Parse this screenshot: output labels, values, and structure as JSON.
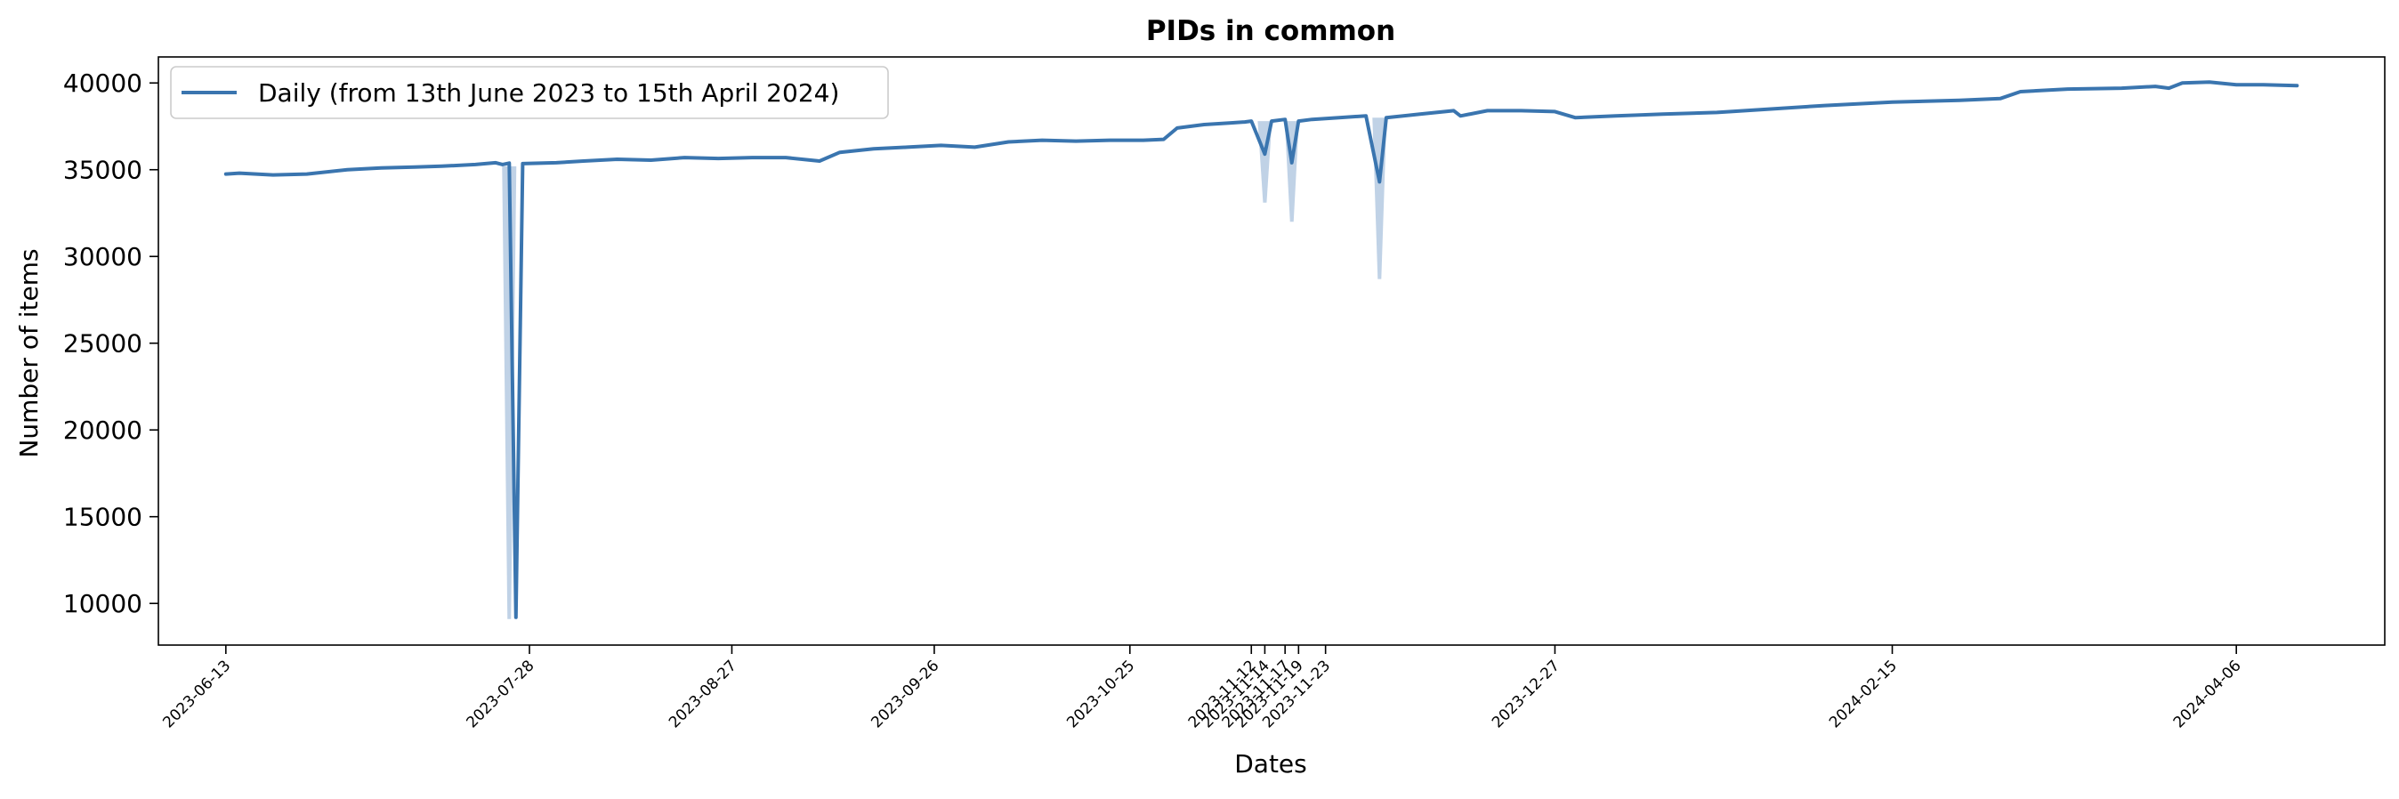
{
  "chart_data": {
    "type": "line",
    "title": "PIDs in common",
    "xlabel": "Dates",
    "ylabel": "Number of items",
    "legend": {
      "placement": "top-left",
      "entries": [
        "Daily (from 13th June 2023 to 15th April 2024)"
      ]
    },
    "grid": false,
    "ylim": [
      7600,
      41500
    ],
    "xlim": [
      "2023-06-03",
      "2024-04-28"
    ],
    "y_ticks": [
      10000,
      15000,
      20000,
      25000,
      30000,
      35000,
      40000
    ],
    "x_ticks": [
      "2023-06-13",
      "2023-07-28",
      "2023-08-27",
      "2023-09-26",
      "2023-10-25",
      "2023-11-12",
      "2023-11-14",
      "2023-11-17",
      "2023-11-19",
      "2023-11-23",
      "2023-12-27",
      "2024-02-15",
      "2024-04-06"
    ],
    "colors": {
      "line": "#3a75af",
      "band": "#b9cde3"
    },
    "series": [
      {
        "name": "Daily (from 13th June 2023 to 15th April 2024)",
        "points": [
          [
            "2023-06-13",
            34750
          ],
          [
            "2023-06-15",
            34800
          ],
          [
            "2023-06-20",
            34700
          ],
          [
            "2023-06-25",
            34750
          ],
          [
            "2023-07-01",
            35000
          ],
          [
            "2023-07-06",
            35100
          ],
          [
            "2023-07-11",
            35150
          ],
          [
            "2023-07-15",
            35200
          ],
          [
            "2023-07-20",
            35300
          ],
          [
            "2023-07-23",
            35400
          ],
          [
            "2023-07-24",
            35300
          ],
          [
            "2023-07-25",
            35380
          ],
          [
            "2023-07-26",
            9200
          ],
          [
            "2023-07-27",
            35350
          ],
          [
            "2023-08-01",
            35400
          ],
          [
            "2023-08-05",
            35500
          ],
          [
            "2023-08-10",
            35600
          ],
          [
            "2023-08-15",
            35550
          ],
          [
            "2023-08-20",
            35700
          ],
          [
            "2023-08-25",
            35650
          ],
          [
            "2023-08-30",
            35700
          ],
          [
            "2023-09-04",
            35700
          ],
          [
            "2023-09-09",
            35500
          ],
          [
            "2023-09-12",
            36000
          ],
          [
            "2023-09-17",
            36200
          ],
          [
            "2023-09-22",
            36300
          ],
          [
            "2023-09-27",
            36400
          ],
          [
            "2023-10-02",
            36300
          ],
          [
            "2023-10-07",
            36600
          ],
          [
            "2023-10-12",
            36700
          ],
          [
            "2023-10-17",
            36650
          ],
          [
            "2023-10-22",
            36700
          ],
          [
            "2023-10-27",
            36700
          ],
          [
            "2023-10-30",
            36750
          ],
          [
            "2023-11-01",
            37400
          ],
          [
            "2023-11-05",
            37600
          ],
          [
            "2023-11-09",
            37700
          ],
          [
            "2023-11-11",
            37750
          ],
          [
            "2023-11-12",
            37800
          ],
          [
            "2023-11-14",
            35900
          ],
          [
            "2023-11-15",
            37800
          ],
          [
            "2023-11-17",
            37900
          ],
          [
            "2023-11-18",
            35400
          ],
          [
            "2023-11-19",
            37800
          ],
          [
            "2023-11-21",
            37900
          ],
          [
            "2023-11-25",
            38000
          ],
          [
            "2023-11-29",
            38100
          ],
          [
            "2023-12-01",
            34300
          ],
          [
            "2023-12-02",
            38000
          ],
          [
            "2023-12-07",
            38200
          ],
          [
            "2023-12-12",
            38400
          ],
          [
            "2023-12-13",
            38100
          ],
          [
            "2023-12-17",
            38400
          ],
          [
            "2023-12-22",
            38400
          ],
          [
            "2023-12-27",
            38350
          ],
          [
            "2023-12-30",
            38000
          ],
          [
            "2024-01-05",
            38100
          ],
          [
            "2024-01-12",
            38200
          ],
          [
            "2024-01-20",
            38300
          ],
          [
            "2024-01-28",
            38500
          ],
          [
            "2024-02-05",
            38700
          ],
          [
            "2024-02-15",
            38900
          ],
          [
            "2024-02-25",
            39000
          ],
          [
            "2024-03-02",
            39100
          ],
          [
            "2024-03-05",
            39500
          ],
          [
            "2024-03-12",
            39650
          ],
          [
            "2024-03-20",
            39700
          ],
          [
            "2024-03-25",
            39800
          ],
          [
            "2024-03-27",
            39700
          ],
          [
            "2024-03-29",
            40000
          ],
          [
            "2024-04-02",
            40050
          ],
          [
            "2024-04-06",
            39900
          ],
          [
            "2024-04-10",
            39900
          ],
          [
            "2024-04-15",
            39850
          ]
        ]
      }
    ],
    "band_dips": [
      [
        "2023-07-25",
        35200,
        9100
      ],
      [
        "2023-11-14",
        33100,
        37800
      ],
      [
        "2023-11-18",
        32000,
        37800
      ],
      [
        "2023-12-01",
        28700,
        38000
      ]
    ]
  }
}
